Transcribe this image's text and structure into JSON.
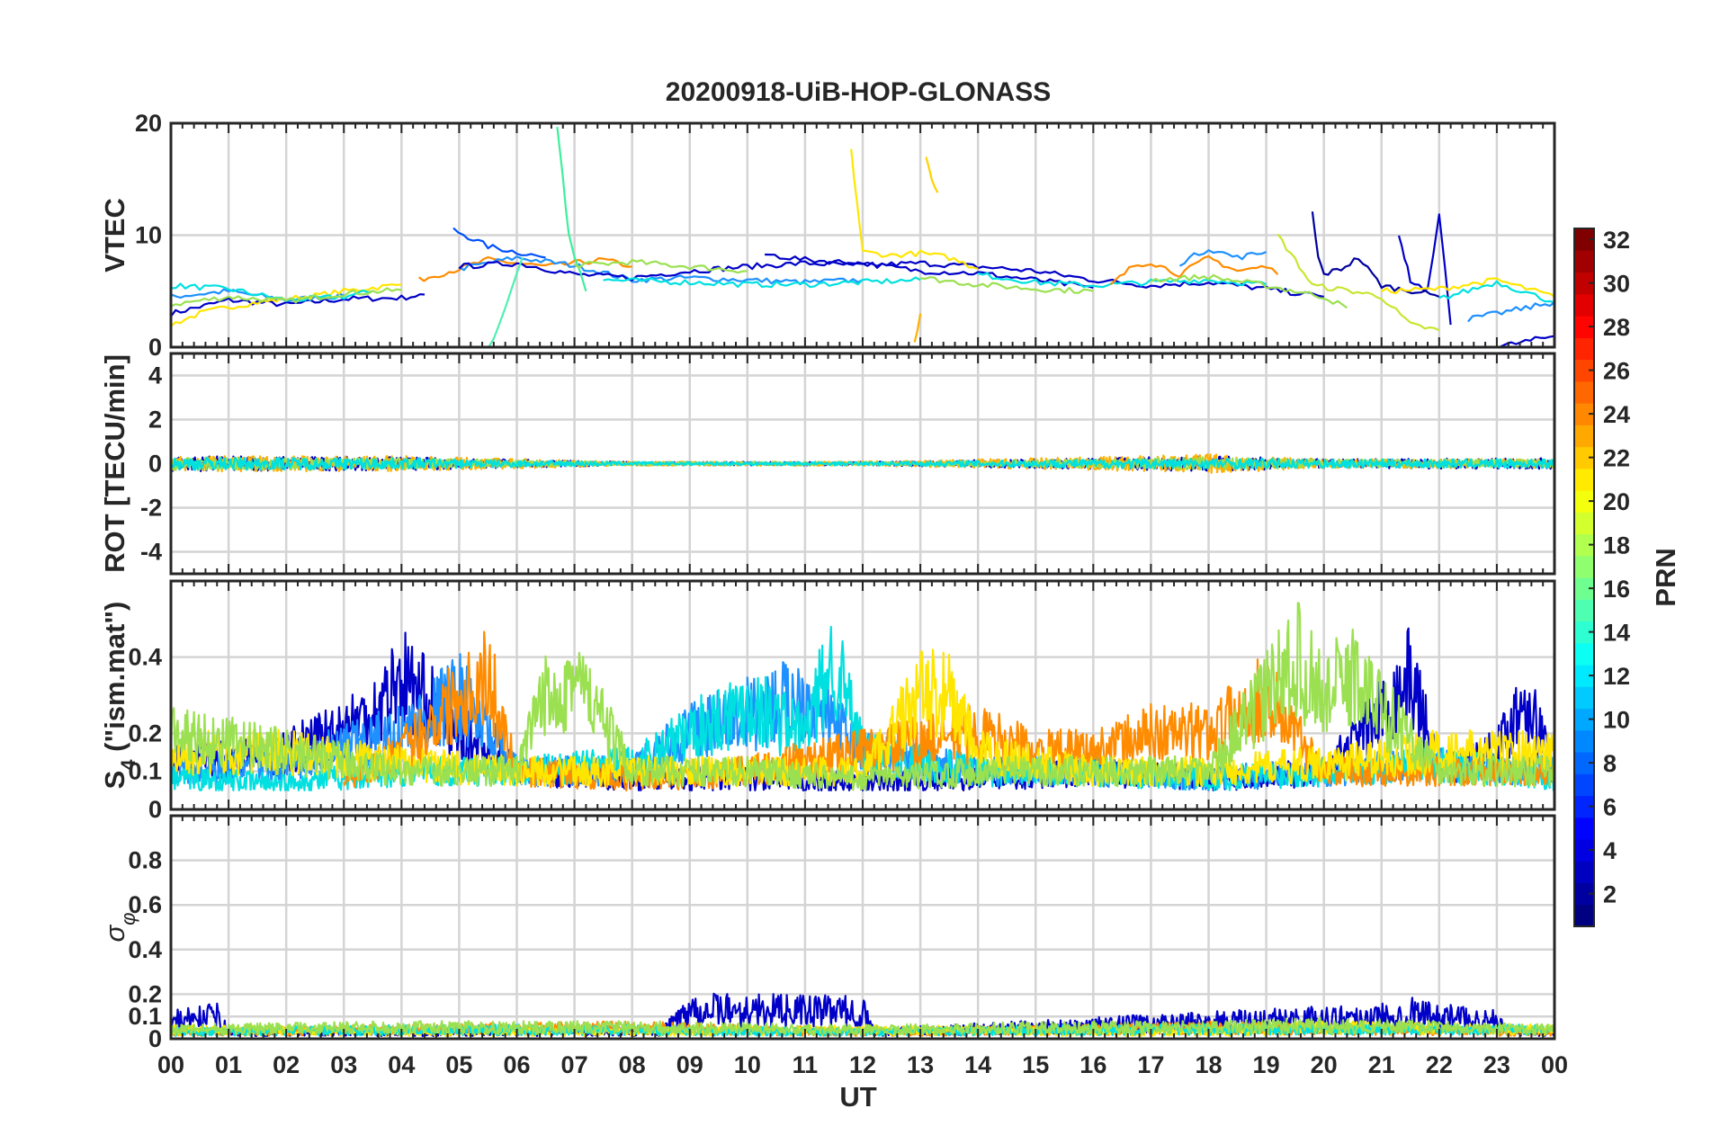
{
  "figure": {
    "title": "20200918-UiB-HOP-GLONASS",
    "xlabel": "UT"
  },
  "colorbar": {
    "label": "PRN",
    "range": [
      1,
      32
    ],
    "ticks": [
      "2",
      "4",
      "6",
      "8",
      "10",
      "12",
      "14",
      "16",
      "18",
      "20",
      "22",
      "24",
      "26",
      "28",
      "30",
      "32"
    ],
    "colormap": "jet"
  },
  "chart_data": [
    {
      "type": "line",
      "title": "20200918-UiB-HOP-GLONASS",
      "ylabel": "VTEC",
      "xlim": [
        0,
        24
      ],
      "ylim": [
        0,
        20
      ],
      "x_ticks": [
        "00",
        "01",
        "02",
        "03",
        "04",
        "05",
        "06",
        "07",
        "08",
        "09",
        "10",
        "11",
        "12",
        "13",
        "14",
        "15",
        "16",
        "17",
        "18",
        "19",
        "20",
        "21",
        "22",
        "23",
        "00"
      ],
      "y_ticks": [
        "0",
        "10",
        "20"
      ],
      "grid": true,
      "series": [
        {
          "color": "#0000c8",
          "x": [
            0,
            1,
            2,
            3,
            4,
            4.4
          ],
          "y": [
            3,
            4.2,
            3.8,
            4.3,
            4.4,
            4.7
          ]
        },
        {
          "color": "#1e90ff",
          "x": [
            0,
            1,
            2,
            3
          ],
          "y": [
            4.5,
            5,
            4.2,
            4.6
          ]
        },
        {
          "color": "#ffe600",
          "x": [
            0,
            0.5,
            1,
            1.5,
            2,
            2.5,
            3,
            3.5,
            4
          ],
          "y": [
            2,
            3,
            3.6,
            4,
            4.3,
            4.6,
            5,
            5.3,
            5.6
          ]
        },
        {
          "color": "#00e0e0",
          "x": [
            0,
            1,
            2,
            3,
            3.5
          ],
          "y": [
            5.5,
            5.2,
            4.2,
            4.5,
            5
          ]
        },
        {
          "color": "#9be050",
          "x": [
            0,
            1,
            2,
            3,
            4
          ],
          "y": [
            3.8,
            4.5,
            4.1,
            4.8,
            5.1
          ]
        },
        {
          "color": "#0050ff",
          "x": [
            4.9,
            5.5,
            6,
            6.5
          ],
          "y": [
            10.5,
            9,
            8.5,
            8
          ]
        },
        {
          "color": "#ff8c00",
          "x": [
            4.3,
            5,
            5.5,
            6,
            6.5,
            7,
            7.5,
            8
          ],
          "y": [
            6,
            7,
            7.8,
            7.5,
            7.2,
            7.5,
            7.8,
            7.2
          ]
        },
        {
          "color": "#1e90ff",
          "x": [
            5,
            6,
            7,
            8,
            9,
            10,
            11,
            12
          ],
          "y": [
            7,
            8,
            7.3,
            6,
            6.2,
            6,
            5.8,
            6
          ]
        },
        {
          "color": "#0000c8",
          "x": [
            5,
            6,
            7,
            8,
            9,
            10,
            11,
            12,
            13,
            14,
            15,
            16,
            17,
            18,
            19,
            20
          ],
          "y": [
            7.2,
            7.5,
            6.5,
            6.2,
            6.8,
            7.2,
            7.5,
            7.3,
            7.5,
            7.2,
            6.8,
            6,
            5.5,
            5.8,
            5.2,
            4.5
          ]
        },
        {
          "color": "#3cf09b",
          "x": [
            6.7,
            6.8,
            6.9,
            7,
            7.2
          ],
          "y": [
            19.8,
            15,
            10,
            8,
            5
          ]
        },
        {
          "color": "#50f0b4",
          "x": [
            5.5,
            5.7,
            5.9,
            6.1
          ],
          "y": [
            0,
            2,
            5,
            8
          ]
        },
        {
          "color": "#9be050",
          "x": [
            7,
            8,
            9,
            10
          ],
          "y": [
            7.3,
            7.6,
            7.2,
            6.8
          ]
        },
        {
          "color": "#00e0e0",
          "x": [
            7.5,
            9,
            10,
            11,
            12,
            13
          ],
          "y": [
            6,
            5.8,
            5.6,
            5.6,
            5.8,
            6
          ]
        },
        {
          "color": "#0000c8",
          "x": [
            10.3,
            11,
            12,
            13,
            14,
            15,
            16
          ],
          "y": [
            8.3,
            7.8,
            7.5,
            6.8,
            6.6,
            6,
            5.3
          ]
        },
        {
          "color": "#ffe600",
          "x": [
            11.8,
            11.9,
            12,
            12.5,
            13,
            13.5,
            14
          ],
          "y": [
            17.5,
            13,
            8.5,
            8.2,
            8.4,
            8,
            7
          ]
        },
        {
          "color": "#ffd200",
          "x": [
            13.1,
            13.2,
            13.3
          ],
          "y": [
            17.2,
            15,
            13.8
          ]
        },
        {
          "color": "#ffb000",
          "x": [
            12.9,
            13
          ],
          "y": [
            0.5,
            3
          ]
        },
        {
          "color": "#9be050",
          "x": [
            13,
            14,
            15,
            16
          ],
          "y": [
            6.2,
            5.6,
            5.2,
            5
          ]
        },
        {
          "color": "#00e0e0",
          "x": [
            14,
            15,
            16,
            17,
            18,
            19
          ],
          "y": [
            6.5,
            5.8,
            5.5,
            5.8,
            6,
            5.6
          ]
        },
        {
          "color": "#ff8c00",
          "x": [
            16.3,
            16.7,
            17,
            17.5,
            18,
            18.5,
            19,
            19.2
          ],
          "y": [
            5.5,
            7.3,
            7.6,
            6.5,
            8,
            6.8,
            7.2,
            6.5
          ]
        },
        {
          "color": "#1e90ff",
          "x": [
            17.5,
            18,
            18.5,
            19
          ],
          "y": [
            7.5,
            8.8,
            8,
            8.5
          ]
        },
        {
          "color": "#9be050",
          "x": [
            17,
            18,
            19,
            20,
            20.4
          ],
          "y": [
            6,
            6.3,
            5.5,
            4.5,
            3.5
          ]
        },
        {
          "color": "#c8e632",
          "x": [
            19.2,
            19.5,
            19.8,
            20.5,
            21,
            21.5,
            22
          ],
          "y": [
            10,
            7.8,
            5.5,
            5,
            4.5,
            2,
            1.5
          ]
        },
        {
          "color": "#0000a0",
          "x": [
            19.8,
            19.9,
            20,
            20.3,
            20.6,
            21,
            21.3,
            21.6,
            22
          ],
          "y": [
            12,
            8,
            6.5,
            7,
            8,
            5.5,
            5.2,
            5,
            4.5
          ]
        },
        {
          "color": "#0000c8",
          "x": [
            21.3,
            21.4,
            21.5,
            21.8,
            22,
            22.2
          ],
          "y": [
            10.2,
            8,
            6,
            5,
            12,
            2
          ]
        },
        {
          "color": "#ffe600",
          "x": [
            21,
            22,
            23,
            24
          ],
          "y": [
            5,
            5.2,
            6,
            4.5
          ]
        },
        {
          "color": "#00e0e0",
          "x": [
            22,
            23,
            24
          ],
          "y": [
            4.3,
            5.8,
            4
          ]
        },
        {
          "color": "#1e90ff",
          "x": [
            22.5,
            23,
            24
          ],
          "y": [
            2.5,
            3,
            4
          ]
        },
        {
          "color": "#0000c8",
          "x": [
            23,
            23.5,
            24
          ],
          "y": [
            0,
            0.5,
            1
          ]
        }
      ]
    },
    {
      "type": "line",
      "ylabel": "ROT [TECU/min]",
      "xlim": [
        0,
        24
      ],
      "ylim": [
        -5,
        5
      ],
      "y_ticks": [
        "-4",
        "-2",
        "0",
        "2",
        "4"
      ],
      "grid": true,
      "series": [
        {
          "color": "#0000c8",
          "x": [
            0,
            4,
            8,
            12,
            16,
            18,
            20,
            24
          ],
          "y": [
            0,
            0,
            0,
            0,
            0,
            0,
            0,
            0
          ],
          "noise": [
            0.35,
            0.3,
            0.08,
            0.08,
            0.25,
            0.35,
            0.2,
            0.25
          ]
        },
        {
          "color": "#ffb000",
          "x": [
            0,
            4,
            8,
            12,
            16,
            18,
            20,
            24
          ],
          "y": [
            0,
            0,
            0,
            0,
            0,
            0,
            0,
            0
          ],
          "noise": [
            0.35,
            0.35,
            0.1,
            0.1,
            0.3,
            0.45,
            0.2,
            0.2
          ]
        },
        {
          "color": "#9be050",
          "x": [
            0,
            4,
            8,
            12,
            16,
            18,
            20,
            24
          ],
          "y": [
            0,
            0,
            0,
            0,
            0,
            0,
            0,
            0
          ],
          "noise": [
            0.3,
            0.25,
            0.08,
            0.08,
            0.2,
            0.3,
            0.2,
            0.2
          ]
        },
        {
          "color": "#00e0e0",
          "x": [
            0,
            4,
            8,
            12,
            16,
            18,
            20,
            24
          ],
          "y": [
            0,
            0,
            0,
            0,
            0,
            0,
            0,
            0
          ],
          "noise": [
            0.3,
            0.25,
            0.08,
            0.08,
            0.2,
            0.25,
            0.2,
            0.2
          ]
        }
      ]
    },
    {
      "type": "line",
      "ylabel": "S4 (\"ism.mat\")",
      "ylabel_main": "S",
      "ylabel_sub": "4",
      "ylabel_rest": " (\"ism.mat\")",
      "xlim": [
        0,
        24
      ],
      "ylim": [
        0,
        0.6
      ],
      "y_ticks": [
        "0",
        "0.1",
        "0.2",
        "0.4"
      ],
      "grid": true,
      "series": [
        {
          "color": "#0000c8",
          "x": [
            0,
            2,
            3.5,
            4,
            5,
            6,
            8,
            10,
            12,
            14,
            16,
            18,
            20,
            21,
            21.5,
            22,
            23,
            23.5,
            24
          ],
          "y": [
            0.12,
            0.15,
            0.25,
            0.35,
            0.2,
            0.1,
            0.08,
            0.08,
            0.07,
            0.08,
            0.1,
            0.08,
            0.1,
            0.25,
            0.35,
            0.1,
            0.15,
            0.3,
            0.1
          ]
        },
        {
          "color": "#1e90ff",
          "x": [
            0,
            2,
            4,
            5,
            6,
            8,
            9,
            10,
            11,
            12,
            14,
            16,
            18,
            20,
            22,
            24
          ],
          "y": [
            0.1,
            0.12,
            0.2,
            0.3,
            0.1,
            0.1,
            0.2,
            0.25,
            0.3,
            0.15,
            0.1,
            0.1,
            0.08,
            0.1,
            0.12,
            0.1
          ]
        },
        {
          "color": "#00e0e0",
          "x": [
            0,
            2,
            4,
            6,
            8,
            9,
            10,
            11,
            11.5,
            12,
            14,
            16,
            18,
            20,
            22,
            24
          ],
          "y": [
            0.08,
            0.07,
            0.1,
            0.1,
            0.12,
            0.2,
            0.28,
            0.2,
            0.4,
            0.15,
            0.1,
            0.1,
            0.08,
            0.1,
            0.12,
            0.08
          ]
        },
        {
          "color": "#ff8c00",
          "x": [
            3,
            4,
            5,
            5.5,
            6,
            8,
            9,
            14,
            15,
            16,
            17,
            18,
            19,
            20,
            24
          ],
          "y": [
            0.08,
            0.15,
            0.3,
            0.35,
            0.1,
            0.08,
            0.08,
            0.2,
            0.15,
            0.15,
            0.2,
            0.2,
            0.3,
            0.1,
            0.1
          ]
        },
        {
          "color": "#ffe600",
          "x": [
            0,
            2,
            4,
            6,
            8,
            12,
            13,
            13.5,
            14,
            16,
            18,
            20,
            22,
            24
          ],
          "y": [
            0.15,
            0.15,
            0.12,
            0.1,
            0.1,
            0.1,
            0.3,
            0.3,
            0.15,
            0.1,
            0.1,
            0.12,
            0.15,
            0.15
          ]
        },
        {
          "color": "#9be050",
          "x": [
            0,
            2,
            4,
            6,
            6.5,
            7,
            8,
            10,
            12,
            14,
            16,
            18,
            19,
            19.5,
            20,
            20.5,
            22,
            24
          ],
          "y": [
            0.2,
            0.15,
            0.1,
            0.1,
            0.3,
            0.35,
            0.1,
            0.1,
            0.08,
            0.1,
            0.1,
            0.1,
            0.3,
            0.4,
            0.3,
            0.35,
            0.1,
            0.1
          ]
        }
      ]
    },
    {
      "type": "line",
      "ylabel": "σφ",
      "ylabel_main": "σ",
      "ylabel_sub": "φ",
      "xlim": [
        0,
        24
      ],
      "ylim": [
        0,
        1
      ],
      "y_ticks": [
        "0",
        "0.1",
        "0.2",
        "0.4",
        "0.6",
        "0.8"
      ],
      "grid": true,
      "series": [
        {
          "color": "#0000c8",
          "x": [
            0,
            0.8,
            1,
            8.5,
            9,
            12,
            12.2,
            21,
            21.5,
            22,
            23,
            23.2,
            24
          ],
          "y": [
            0.08,
            0.1,
            0.03,
            0.03,
            0.13,
            0.12,
            0.03,
            0.1,
            0.12,
            0.1,
            0.08,
            0.03,
            0.03
          ]
        },
        {
          "color": "#ff8c00",
          "x": [
            0,
            4,
            8,
            12,
            16,
            18,
            20,
            24
          ],
          "y": [
            0.03,
            0.04,
            0.05,
            0.03,
            0.04,
            0.05,
            0.04,
            0.03
          ]
        },
        {
          "color": "#ffe600",
          "x": [
            0,
            4,
            8,
            12,
            16,
            18,
            20,
            24
          ],
          "y": [
            0.04,
            0.03,
            0.03,
            0.04,
            0.03,
            0.03,
            0.05,
            0.04
          ]
        },
        {
          "color": "#00e0e0",
          "x": [
            0,
            4,
            8,
            12,
            16,
            18,
            20,
            24
          ],
          "y": [
            0.03,
            0.04,
            0.04,
            0.03,
            0.04,
            0.04,
            0.04,
            0.04
          ]
        },
        {
          "color": "#9be050",
          "x": [
            0,
            4,
            8,
            12,
            16,
            18,
            20,
            24
          ],
          "y": [
            0.04,
            0.05,
            0.05,
            0.04,
            0.05,
            0.05,
            0.06,
            0.04
          ]
        }
      ]
    }
  ]
}
